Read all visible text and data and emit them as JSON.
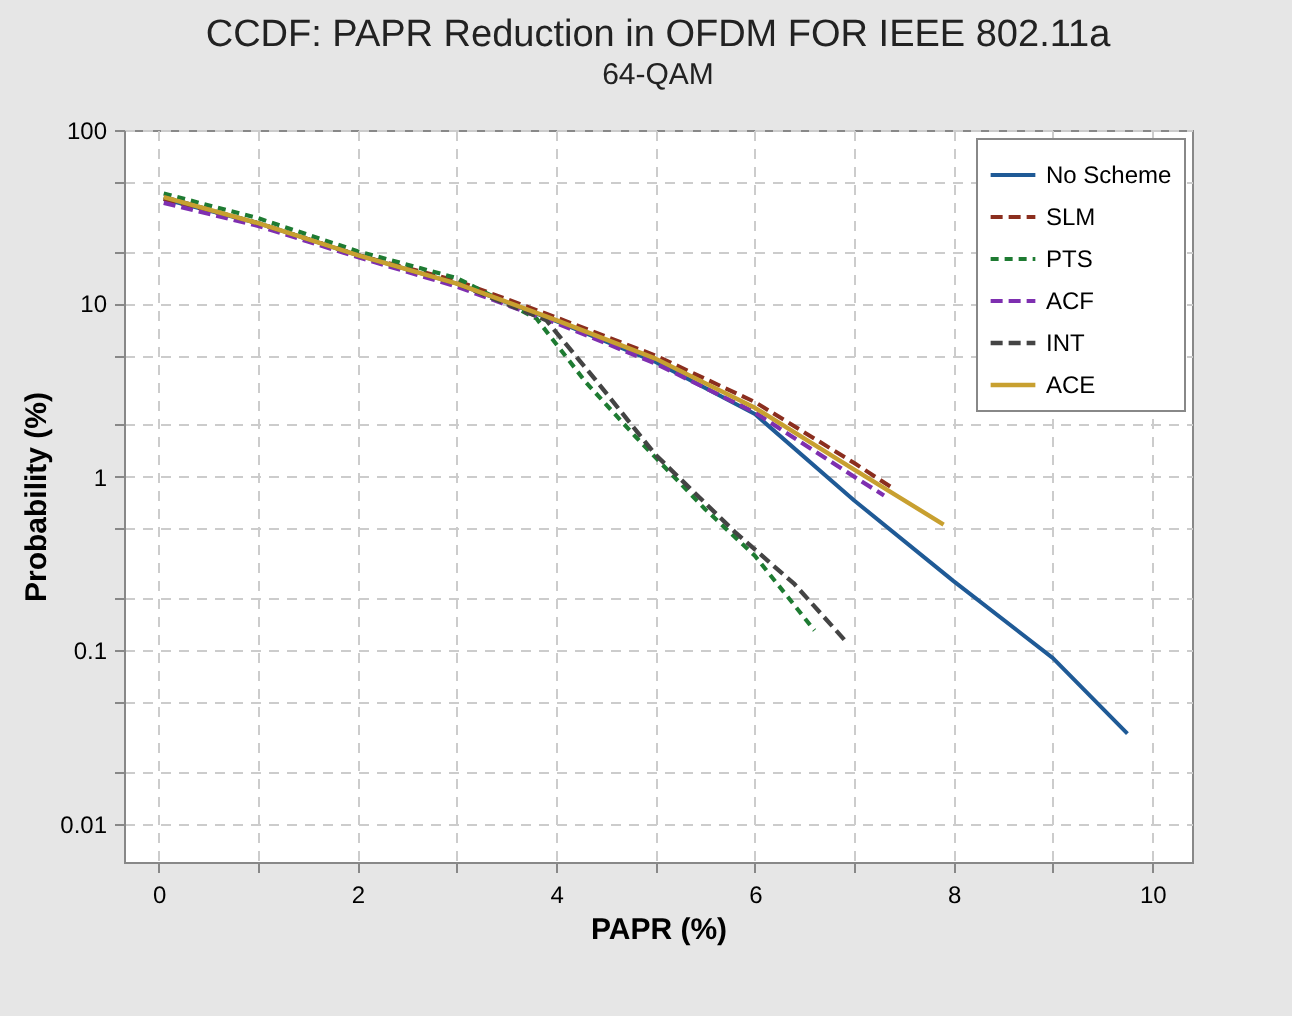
{
  "chart_data": {
    "type": "line",
    "title": "CCDF: PAPR Reduction in OFDM FOR IEEE 802.11a",
    "subtitle": "64-QAM",
    "xlabel": "PAPR (%)",
    "ylabel": "Probability (%)",
    "log": "y",
    "grid": true,
    "legend": "top right",
    "xlim": [
      -0.35,
      10.4
    ],
    "ylim": [
      0.006,
      100
    ],
    "xticks": [
      0,
      {
        "value": 1,
        "label": null
      },
      2,
      {
        "value": 3,
        "label": null
      },
      4,
      {
        "value": 5,
        "label": null
      },
      6,
      {
        "value": 7,
        "label": null
      },
      8,
      {
        "value": 9,
        "label": null
      },
      10
    ],
    "yticks": [
      0.01,
      {
        "value": 0.02,
        "label": null
      },
      {
        "value": 0.05,
        "label": null
      },
      0.1,
      {
        "value": 0.2,
        "label": null
      },
      {
        "value": 0.5,
        "label": null
      },
      1,
      {
        "value": 2,
        "label": null
      },
      {
        "value": 5,
        "label": null
      },
      10,
      {
        "value": 20,
        "label": null
      },
      {
        "value": 50,
        "label": null
      },
      100
    ],
    "series": [
      {
        "name": "No Scheme",
        "color": "#1f5a96",
        "line_style": "solid",
        "x": [
          0.05,
          1,
          2,
          3,
          4,
          5,
          6,
          7,
          8,
          9,
          9.75
        ],
        "values": [
          40,
          29,
          19,
          13,
          7.9,
          4.6,
          2.3,
          0.73,
          0.25,
          0.09,
          0.033
        ]
      },
      {
        "name": "SLM",
        "color": "#8b2e1e",
        "line_style": "dashed",
        "x": [
          0.05,
          1,
          2,
          3,
          4,
          5,
          6,
          7,
          7.4
        ],
        "values": [
          40,
          29,
          19,
          13.5,
          8.3,
          5,
          2.7,
          1.2,
          0.85
        ]
      },
      {
        "name": "PTS",
        "color": "#1e7b32",
        "line_style": "dotted",
        "x": [
          0.05,
          1,
          2,
          3,
          3.8,
          4.3,
          4.8,
          5.5,
          6,
          6.6
        ],
        "values": [
          43,
          31,
          20,
          14,
          8.2,
          3.5,
          1.7,
          0.65,
          0.35,
          0.13
        ]
      },
      {
        "name": "ACF",
        "color": "#7e2fb0",
        "line_style": "dashed",
        "x": [
          0.05,
          1,
          2,
          3,
          4,
          5,
          6,
          7,
          7.3
        ],
        "values": [
          38,
          28,
          18.5,
          12.5,
          7.7,
          4.5,
          2.35,
          1.0,
          0.78
        ]
      },
      {
        "name": "INT",
        "color": "#444444",
        "line_style": "dashed",
        "x": [
          0.05,
          1,
          2,
          3,
          3.9,
          4.4,
          5,
          5.8,
          6.4,
          6.93
        ],
        "values": [
          41,
          29,
          19,
          13,
          8,
          3.6,
          1.34,
          0.48,
          0.24,
          0.11
        ]
      },
      {
        "name": "ACE",
        "color": "#c8a030",
        "line_style": "solid",
        "x": [
          0.05,
          1,
          2,
          3,
          4,
          5,
          6,
          7,
          7.9
        ],
        "values": [
          41,
          29,
          19,
          13,
          8,
          4.8,
          2.5,
          1.1,
          0.53
        ]
      }
    ]
  }
}
